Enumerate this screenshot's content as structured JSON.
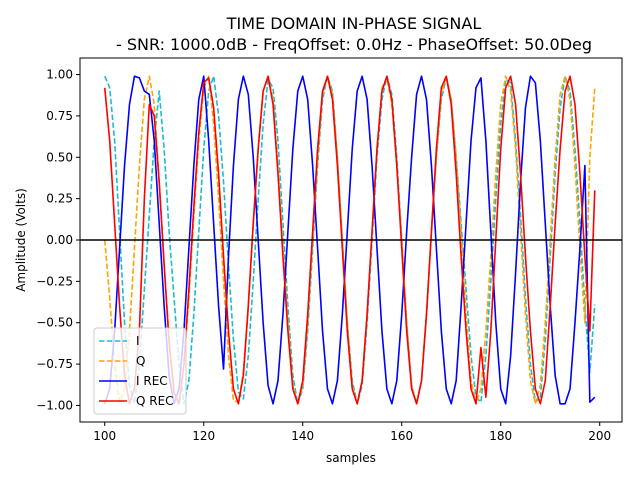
{
  "chart_data": {
    "type": "line",
    "title_line1": "TIME DOMAIN IN-PHASE SIGNAL",
    "title_line2": "- SNR: 1000.0dB - FreqOffset: 0.0Hz - PhaseOffset: 50.0Deg",
    "xlabel": "samples",
    "ylabel": "Amplitude (Volts)",
    "xlim": [
      95,
      204.5
    ],
    "ylim": [
      -1.1,
      1.1
    ],
    "xticks": [
      100,
      120,
      140,
      160,
      180,
      200
    ],
    "yticks": [
      -1.0,
      -0.75,
      -0.5,
      -0.25,
      0.0,
      0.25,
      0.5,
      0.75,
      1.0
    ],
    "xtick_labels": [
      "100",
      "120",
      "140",
      "160",
      "180",
      "200"
    ],
    "ytick_labels": [
      "−1.00",
      "−0.75",
      "−0.50",
      "−0.25",
      "0.00",
      "0.25",
      "0.50",
      "0.75",
      "1.00"
    ],
    "x_start": 100,
    "x_end": 199,
    "legend_position": "lower-left",
    "hline_y": 0,
    "series": [
      {
        "name": "I",
        "color": "#17becf",
        "dash": "dashed",
        "values": [
          0.99,
          0.92,
          0.6,
          0.05,
          -0.5,
          -0.88,
          -0.99,
          -0.75,
          -0.3,
          0.15,
          0.6,
          0.9,
          0.55,
          0.05,
          -0.35,
          -0.75,
          -0.99,
          -0.85,
          -0.45,
          0.05,
          0.55,
          0.9,
          0.99,
          0.75,
          0.35,
          -0.15,
          -0.6,
          -0.92,
          -0.96,
          -0.7,
          -0.25,
          0.25,
          0.7,
          0.97,
          0.92,
          0.6,
          0.1,
          -0.4,
          -0.82,
          -0.99,
          -0.9,
          -0.55,
          -0.05,
          0.45,
          0.85,
          0.99,
          0.9,
          0.5,
          0.0,
          -0.5,
          -0.85,
          -0.99,
          -0.88,
          -0.5,
          0.0,
          0.5,
          0.85,
          0.99,
          0.88,
          0.5,
          0.0,
          -0.5,
          -0.88,
          -0.99,
          -0.85,
          -0.45,
          0.05,
          0.5,
          0.85,
          0.98,
          0.85,
          0.5,
          0.1,
          -0.3,
          -0.7,
          -0.95,
          -0.98,
          -0.7,
          -0.25,
          0.25,
          0.7,
          0.97,
          0.95,
          0.6,
          0.15,
          -0.35,
          -0.75,
          -0.98,
          -0.95,
          -0.6,
          -0.1,
          0.4,
          0.8,
          0.99,
          0.9,
          0.55,
          0.1,
          -0.4,
          -0.8,
          -0.39
        ]
      },
      {
        "name": "Q",
        "color": "#ffa500",
        "dash": "dashed",
        "values": [
          0.0,
          -0.35,
          -0.75,
          -0.98,
          -0.9,
          -0.55,
          -0.05,
          0.45,
          0.85,
          0.99,
          0.82,
          0.35,
          -0.15,
          -0.6,
          -0.92,
          -0.99,
          -0.75,
          -0.35,
          0.15,
          0.6,
          0.92,
          0.99,
          0.7,
          0.25,
          -0.25,
          -0.7,
          -0.97,
          -0.98,
          -0.8,
          -0.4,
          0.1,
          0.55,
          0.9,
          0.99,
          0.85,
          0.45,
          -0.05,
          -0.5,
          -0.88,
          -0.99,
          -0.88,
          -0.5,
          0.0,
          0.5,
          0.88,
          0.99,
          0.88,
          0.5,
          0.0,
          -0.5,
          -0.88,
          -0.99,
          -0.85,
          -0.45,
          0.05,
          0.55,
          0.92,
          0.98,
          0.82,
          0.45,
          0.0,
          -0.5,
          -0.88,
          -0.99,
          -0.85,
          -0.45,
          0.05,
          0.5,
          0.88,
          0.99,
          0.85,
          0.5,
          0.05,
          -0.45,
          -0.85,
          -0.99,
          -0.9,
          -0.55,
          -0.1,
          0.4,
          0.82,
          0.99,
          0.9,
          0.55,
          0.05,
          -0.45,
          -0.85,
          -0.99,
          -0.88,
          -0.5,
          0.0,
          0.5,
          0.88,
          0.99,
          0.85,
          0.45,
          -0.05,
          -0.5,
          0.5,
          0.92
        ]
      },
      {
        "name": "I REC",
        "color": "#0000ff",
        "dash": "solid",
        "values": [
          -0.99,
          -0.9,
          -0.55,
          -0.05,
          0.45,
          0.82,
          0.99,
          0.98,
          0.9,
          0.88,
          0.6,
          0.1,
          -0.4,
          -0.82,
          -0.99,
          -0.9,
          -0.55,
          -0.05,
          0.45,
          0.85,
          0.99,
          0.6,
          0.1,
          -0.4,
          -0.78,
          -0.1,
          0.45,
          0.85,
          0.99,
          0.88,
          0.5,
          0.0,
          -0.5,
          -0.88,
          -0.99,
          -0.85,
          -0.45,
          0.05,
          0.55,
          0.9,
          0.99,
          0.85,
          0.45,
          -0.05,
          -0.55,
          -0.9,
          -0.99,
          -0.85,
          -0.45,
          0.05,
          0.55,
          0.9,
          0.99,
          0.85,
          0.45,
          -0.05,
          -0.55,
          -0.9,
          -0.99,
          -0.85,
          -0.45,
          0.05,
          0.5,
          0.88,
          0.99,
          0.85,
          0.45,
          -0.05,
          -0.55,
          -0.9,
          -0.99,
          -0.85,
          -0.4,
          0.1,
          0.6,
          0.92,
          0.98,
          0.6,
          0.05,
          -0.5,
          -0.9,
          -0.99,
          -0.7,
          -0.2,
          0.35,
          0.8,
          0.99,
          0.95,
          0.6,
          0.1,
          -0.4,
          -0.82,
          -0.99,
          -0.99,
          -0.9,
          -0.5,
          -0.05,
          0.45,
          -0.98,
          -0.95
        ]
      },
      {
        "name": "Q REC",
        "color": "#ff0000",
        "dash": "solid",
        "values": [
          0.92,
          0.6,
          0.1,
          -0.4,
          -0.82,
          -0.99,
          -0.9,
          -0.55,
          0.25,
          0.82,
          0.75,
          0.35,
          -0.15,
          -0.62,
          -0.92,
          -0.99,
          -0.75,
          -0.3,
          0.2,
          0.65,
          0.95,
          0.98,
          0.8,
          0.4,
          -0.1,
          -0.55,
          -0.9,
          -0.99,
          -0.82,
          -0.4,
          0.1,
          0.55,
          0.9,
          0.99,
          0.82,
          0.4,
          -0.1,
          -0.55,
          -0.9,
          -0.99,
          -0.85,
          -0.45,
          0.05,
          0.55,
          0.9,
          0.99,
          0.85,
          0.45,
          -0.05,
          -0.55,
          -0.9,
          -0.99,
          -0.85,
          -0.45,
          0.05,
          0.55,
          0.9,
          0.99,
          0.85,
          0.45,
          -0.05,
          -0.55,
          -0.9,
          -0.99,
          -0.85,
          -0.45,
          0.05,
          0.55,
          0.92,
          0.99,
          0.82,
          0.4,
          -0.1,
          -0.55,
          -0.9,
          -0.99,
          -0.65,
          -0.95,
          -0.55,
          0.0,
          0.55,
          0.92,
          0.99,
          0.82,
          0.4,
          -0.1,
          -0.55,
          -0.9,
          -0.99,
          -0.85,
          -0.4,
          0.1,
          0.55,
          0.9,
          0.99,
          0.82,
          0.4,
          -0.1,
          -0.55,
          0.3
        ]
      }
    ]
  }
}
